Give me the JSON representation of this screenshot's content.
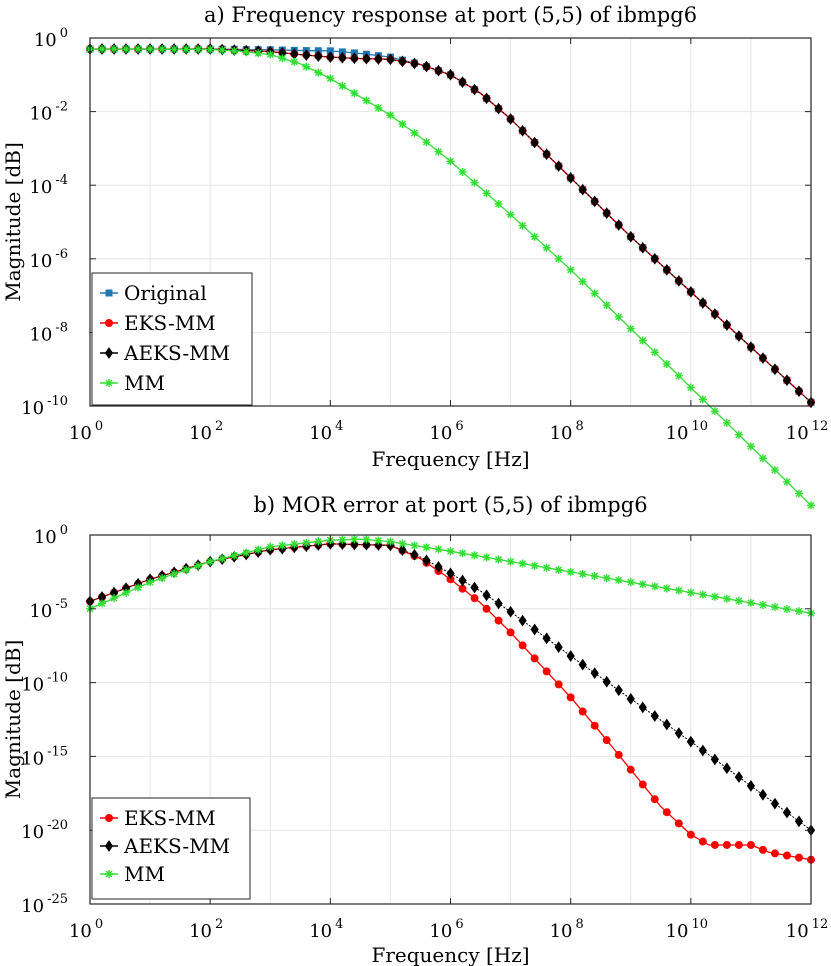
{
  "chart_data": [
    {
      "type": "line",
      "title": "a) Frequency response at port (5,5) of ibmpg6",
      "xlabel": "Frequency [Hz]",
      "ylabel": "Magnitude [dB]",
      "xscale": "log",
      "yscale": "log",
      "xlim": [
        1,
        1000000000000
      ],
      "ylim": [
        1e-10,
        1
      ],
      "xticks": [
        {
          "base": "10",
          "exp": "0"
        },
        {
          "base": "10",
          "exp": "2"
        },
        {
          "base": "10",
          "exp": "4"
        },
        {
          "base": "10",
          "exp": "6"
        },
        {
          "base": "10",
          "exp": "8"
        },
        {
          "base": "10",
          "exp": "10"
        },
        {
          "base": "10",
          "exp": "12"
        }
      ],
      "yticks": [
        {
          "base": "10",
          "exp": "0"
        },
        {
          "base": "10",
          "exp": "-2"
        },
        {
          "base": "10",
          "exp": "-4"
        },
        {
          "base": "10",
          "exp": "-6"
        },
        {
          "base": "10",
          "exp": "-8"
        },
        {
          "base": "10",
          "exp": "-10"
        }
      ],
      "grid": true,
      "legend_position": "bottom-left",
      "series": [
        {
          "name": "Original",
          "color": "#1f77b4",
          "marker": "square",
          "points": [
            [
              0,
              -0.3
            ],
            [
              1,
              -0.3
            ],
            [
              2,
              -0.3
            ],
            [
              3,
              -0.32
            ],
            [
              3.5,
              -0.34
            ],
            [
              4,
              -0.35
            ],
            [
              4.5,
              -0.42
            ],
            [
              5,
              -0.52
            ],
            [
              5.5,
              -0.72
            ],
            [
              6,
              -1.0
            ],
            [
              6.5,
              -1.5
            ],
            [
              7,
              -2.2
            ],
            [
              8,
              -3.8
            ],
            [
              9,
              -5.4
            ],
            [
              10,
              -6.9
            ],
            [
              11,
              -8.4
            ],
            [
              12,
              -9.9
            ]
          ]
        },
        {
          "name": "EKS-MM",
          "color": "#ff0000",
          "marker": "circle",
          "points": [
            [
              0,
              -0.3
            ],
            [
              1,
              -0.3
            ],
            [
              2,
              -0.3
            ],
            [
              3,
              -0.37
            ],
            [
              3.5,
              -0.45
            ],
            [
              4,
              -0.52
            ],
            [
              4.5,
              -0.56
            ],
            [
              5,
              -0.58
            ],
            [
              5.5,
              -0.72
            ],
            [
              6,
              -1.0
            ],
            [
              6.5,
              -1.5
            ],
            [
              7,
              -2.2
            ],
            [
              8,
              -3.8
            ],
            [
              9,
              -5.4
            ],
            [
              10,
              -6.9
            ],
            [
              11,
              -8.4
            ],
            [
              12,
              -9.9
            ]
          ]
        },
        {
          "name": "AEKS-MM",
          "color": "#000000",
          "marker": "diamond",
          "points": [
            [
              0,
              -0.3
            ],
            [
              1,
              -0.3
            ],
            [
              2,
              -0.3
            ],
            [
              3,
              -0.37
            ],
            [
              3.5,
              -0.45
            ],
            [
              4,
              -0.52
            ],
            [
              4.5,
              -0.56
            ],
            [
              5,
              -0.58
            ],
            [
              5.5,
              -0.72
            ],
            [
              6,
              -1.0
            ],
            [
              6.5,
              -1.5
            ],
            [
              7,
              -2.2
            ],
            [
              8,
              -3.8
            ],
            [
              9,
              -5.4
            ],
            [
              10,
              -6.9
            ],
            [
              11,
              -8.4
            ],
            [
              12,
              -9.9
            ]
          ]
        },
        {
          "name": "MM",
          "color": "#33dd33",
          "marker": "asterisk",
          "points": [
            [
              0,
              -0.3
            ],
            [
              1,
              -0.3
            ],
            [
              2,
              -0.31
            ],
            [
              2.5,
              -0.36
            ],
            [
              3,
              -0.45
            ],
            [
              3.5,
              -0.7
            ],
            [
              4,
              -1.1
            ],
            [
              4.5,
              -1.6
            ],
            [
              5,
              -2.1
            ],
            [
              5.5,
              -2.7
            ],
            [
              6,
              -3.35
            ],
            [
              7,
              -4.8
            ],
            [
              8,
              -6.3
            ],
            [
              9,
              -7.9
            ],
            [
              10,
              -9.5
            ],
            [
              11,
              -11.1
            ],
            [
              12,
              -12.7
            ]
          ]
        }
      ]
    },
    {
      "type": "line",
      "title": "b) MOR error at port (5,5) of ibmpg6",
      "xlabel": "Frequency [Hz]",
      "ylabel": "Magnitude [dB]",
      "xscale": "log",
      "yscale": "log",
      "xlim": [
        1,
        1000000000000
      ],
      "ylim": [
        1e-25,
        1
      ],
      "xticks": [
        {
          "base": "10",
          "exp": "0"
        },
        {
          "base": "10",
          "exp": "2"
        },
        {
          "base": "10",
          "exp": "4"
        },
        {
          "base": "10",
          "exp": "6"
        },
        {
          "base": "10",
          "exp": "8"
        },
        {
          "base": "10",
          "exp": "10"
        },
        {
          "base": "10",
          "exp": "12"
        }
      ],
      "yticks": [
        {
          "base": "10",
          "exp": "0"
        },
        {
          "base": "10",
          "exp": "-5"
        },
        {
          "base": "10",
          "exp": "-10"
        },
        {
          "base": "10",
          "exp": "-15"
        },
        {
          "base": "10",
          "exp": "-20"
        },
        {
          "base": "10",
          "exp": "-25"
        }
      ],
      "grid": true,
      "legend_position": "bottom-left",
      "series": [
        {
          "name": "EKS-MM",
          "color": "#ff0000",
          "marker": "circle",
          "points": [
            [
              0,
              -4.5
            ],
            [
              1,
              -3.0
            ],
            [
              2,
              -1.8
            ],
            [
              3,
              -1.0
            ],
            [
              4,
              -0.6
            ],
            [
              5,
              -0.7
            ],
            [
              5.5,
              -1.6
            ],
            [
              6,
              -3.0
            ],
            [
              6.5,
              -4.6
            ],
            [
              7,
              -6.6
            ],
            [
              7.5,
              -8.8
            ],
            [
              8,
              -11.0
            ],
            [
              8.5,
              -13.4
            ],
            [
              9,
              -15.9
            ],
            [
              9.5,
              -18.4
            ],
            [
              10,
              -20.3
            ],
            [
              10.3,
              -21.0
            ],
            [
              11,
              -21.0
            ],
            [
              11.3,
              -21.5
            ],
            [
              12,
              -22.0
            ]
          ]
        },
        {
          "name": "AEKS-MM",
          "color": "#000000",
          "marker": "diamond",
          "points": [
            [
              0,
              -4.5
            ],
            [
              1,
              -3.0
            ],
            [
              2,
              -1.8
            ],
            [
              3,
              -1.0
            ],
            [
              4,
              -0.6
            ],
            [
              5,
              -0.7
            ],
            [
              5.5,
              -1.5
            ],
            [
              6,
              -2.6
            ],
            [
              6.5,
              -3.8
            ],
            [
              7,
              -5.2
            ],
            [
              8,
              -8.2
            ],
            [
              9,
              -11.1
            ],
            [
              10,
              -14.0
            ],
            [
              11,
              -17.0
            ],
            [
              12,
              -20.0
            ]
          ]
        },
        {
          "name": "MM",
          "color": "#33dd33",
          "marker": "asterisk",
          "points": [
            [
              0,
              -5.0
            ],
            [
              1,
              -3.2
            ],
            [
              2,
              -1.8
            ],
            [
              3,
              -0.8
            ],
            [
              4,
              -0.35
            ],
            [
              4.5,
              -0.28
            ],
            [
              5,
              -0.45
            ],
            [
              6,
              -1.1
            ],
            [
              7,
              -1.8
            ],
            [
              8,
              -2.5
            ],
            [
              9,
              -3.2
            ],
            [
              10,
              -3.9
            ],
            [
              11,
              -4.6
            ],
            [
              12,
              -5.3
            ]
          ]
        }
      ]
    }
  ]
}
